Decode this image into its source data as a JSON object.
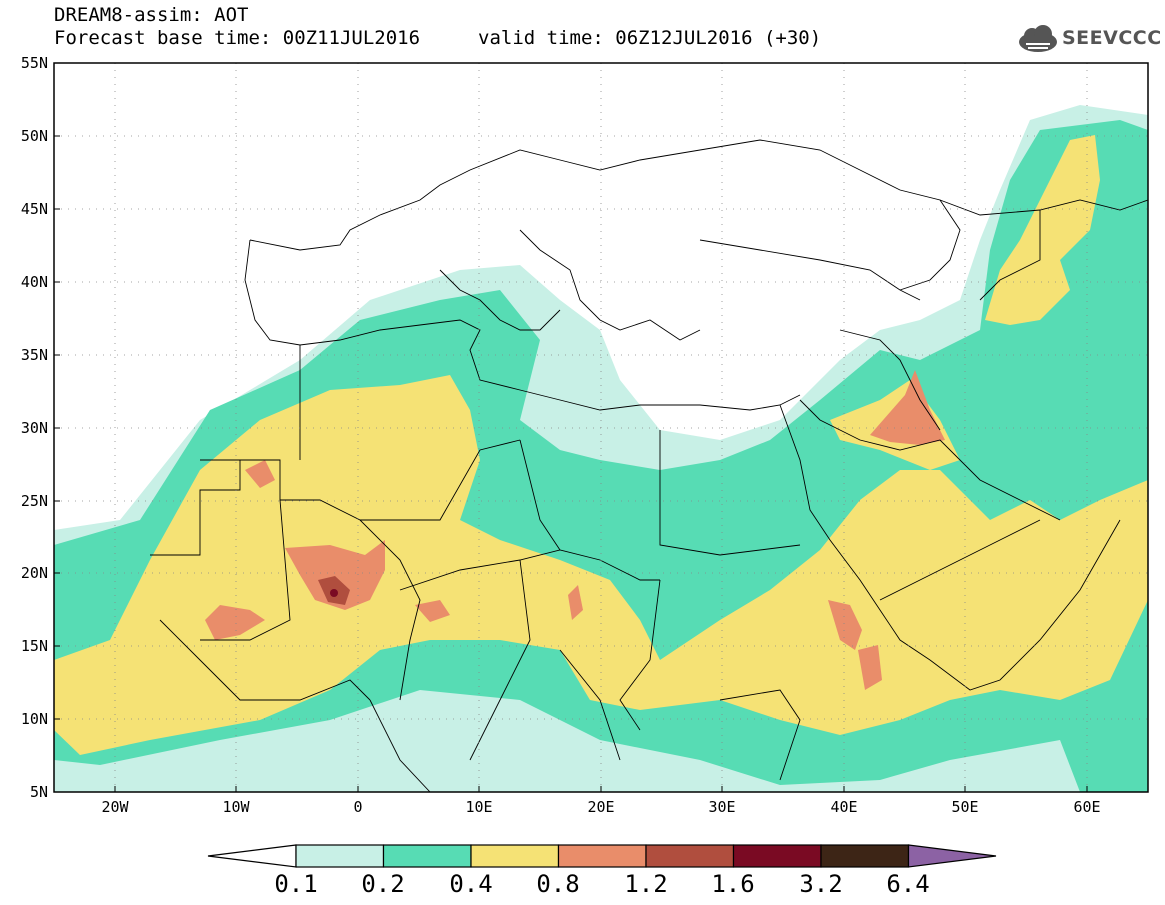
{
  "header": {
    "title": "DREAM8-assim: AOT",
    "base_time": "Forecast base time: 00Z11JUL2016",
    "valid_time": "valid time: 06Z12JUL2016 (+30)"
  },
  "logo": {
    "text": "SEEVCCC",
    "icon": "cloud-icon"
  },
  "axes": {
    "lon_labels": [
      "20W",
      "10W",
      "0",
      "10E",
      "20E",
      "30E",
      "40E",
      "50E",
      "60E"
    ],
    "lat_labels": [
      "55N",
      "50N",
      "45N",
      "40N",
      "35N",
      "30N",
      "25N",
      "20N",
      "15N",
      "10N",
      "5N"
    ],
    "lon_range": [
      -25,
      65
    ],
    "lat_range": [
      5,
      55
    ]
  },
  "colorbar": {
    "labels": [
      "0.1",
      "0.2",
      "0.4",
      "0.8",
      "1.2",
      "1.6",
      "3.2",
      "6.4"
    ],
    "colors": [
      "#c8f0e6",
      "#57dcb4",
      "#f5e275",
      "#e98d6a",
      "#b04e3e",
      "#7a0a23",
      "#3d2516",
      "#8c62a4"
    ]
  },
  "palette": {
    "l1": "#c8f0e6",
    "l2": "#57dcb4",
    "l3": "#f5e275",
    "l4": "#e98d6a",
    "l5": "#b04e3e",
    "l6": "#7a0a23"
  }
}
